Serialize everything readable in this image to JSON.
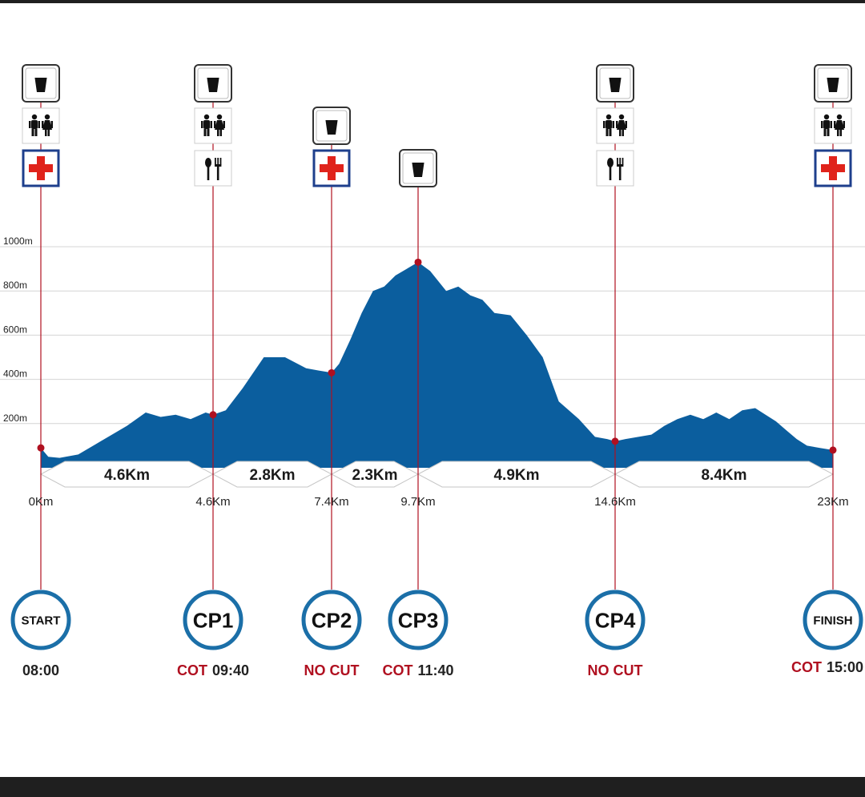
{
  "chart_data": {
    "type": "area",
    "title": "",
    "xlabel": "",
    "ylabel": "",
    "ylim": [
      0,
      1100
    ],
    "y_ticks": [
      {
        "value": 200,
        "label": "200m"
      },
      {
        "value": 400,
        "label": "400m"
      },
      {
        "value": 600,
        "label": "600m"
      },
      {
        "value": 800,
        "label": "800m"
      },
      {
        "value": 1000,
        "label": "1000m"
      }
    ],
    "grid": true,
    "colors": {
      "fill": "#0b5e9e",
      "marker": "#b01020",
      "cut": "#b01020",
      "ring": "#1b6fa8"
    },
    "x_km": [
      0,
      0.2,
      0.5,
      1.0,
      1.5,
      1.9,
      2.3,
      2.8,
      3.2,
      3.6,
      4.0,
      4.4,
      4.6,
      4.9,
      5.3,
      5.8,
      6.3,
      6.8,
      7.1,
      7.4,
      7.6,
      7.9,
      8.2,
      8.5,
      8.8,
      9.1,
      9.4,
      9.7,
      10.0,
      10.4,
      10.7,
      11.0,
      11.3,
      11.6,
      12.0,
      12.4,
      12.8,
      13.2,
      13.7,
      14.1,
      14.4,
      14.6,
      15.0,
      15.5,
      16.0,
      16.5,
      17.0,
      17.5,
      18.0,
      18.5,
      19.0,
      19.5,
      20.0,
      20.4,
      20.8,
      21.2,
      21.6,
      22.0,
      22.5,
      23.0
    ],
    "elevation_m": [
      90,
      50,
      45,
      60,
      110,
      150,
      190,
      250,
      230,
      240,
      220,
      250,
      240,
      260,
      360,
      500,
      500,
      450,
      440,
      430,
      470,
      580,
      700,
      800,
      820,
      870,
      900,
      930,
      890,
      800,
      820,
      780,
      760,
      700,
      690,
      600,
      500,
      300,
      220,
      140,
      130,
      120,
      130,
      140,
      150,
      190,
      220,
      240,
      220,
      250,
      220,
      260,
      270,
      240,
      210,
      170,
      130,
      100,
      90,
      80
    ],
    "checkpoints": [
      {
        "id": "start",
        "km": 0,
        "elev": 90,
        "km_label": "0Km",
        "label": "START",
        "cut_prefix": "",
        "cut_time": "08:00",
        "icons": [
          "drink-icon",
          "toilet-icon",
          "first-aid-icon"
        ]
      },
      {
        "id": "cp1",
        "km": 4.6,
        "elev": 240,
        "km_label": "4.6Km",
        "label": "CP1",
        "cut_prefix": "COT",
        "cut_time": "09:40",
        "icons": [
          "drink-icon",
          "toilet-icon",
          "food-icon"
        ]
      },
      {
        "id": "cp2",
        "km": 7.4,
        "elev": 430,
        "km_label": "7.4Km",
        "label": "CP2",
        "cut_prefix": "NO CUT",
        "cut_time": "",
        "icons": [
          "drink-icon",
          "first-aid-icon"
        ]
      },
      {
        "id": "cp3",
        "km": 9.7,
        "elev": 930,
        "km_label": "9.7Km",
        "label": "CP3",
        "cut_prefix": "COT",
        "cut_time": "11:40",
        "icons": [
          "drink-icon"
        ]
      },
      {
        "id": "cp4",
        "km": 14.6,
        "elev": 120,
        "km_label": "14.6Km",
        "label": "CP4",
        "cut_prefix": "NO CUT",
        "cut_time": "",
        "icons": [
          "drink-icon",
          "toilet-icon",
          "food-icon"
        ]
      },
      {
        "id": "finish",
        "km": 23,
        "elev": 80,
        "km_label": "23Km",
        "label": "FINISH",
        "cut_prefix": "COT",
        "cut_time": "15:00",
        "icons": [
          "drink-icon",
          "toilet-icon",
          "first-aid-icon"
        ]
      }
    ],
    "segments": [
      {
        "from_km": 0,
        "to_km": 4.6,
        "label": "4.6Km"
      },
      {
        "from_km": 4.6,
        "to_km": 7.4,
        "label": "2.8Km"
      },
      {
        "from_km": 7.4,
        "to_km": 9.7,
        "label": "2.3Km"
      },
      {
        "from_km": 9.7,
        "to_km": 14.6,
        "label": "4.9Km"
      },
      {
        "from_km": 14.6,
        "to_km": 23,
        "label": "8.4Km"
      }
    ]
  }
}
